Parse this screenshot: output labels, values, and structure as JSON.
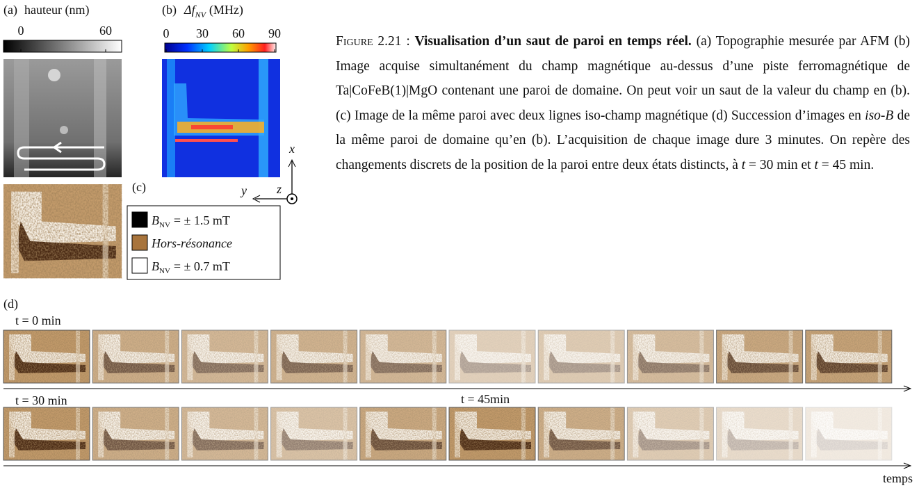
{
  "panel_a": {
    "label": "(a)",
    "title": "hauteur (nm)",
    "colorbar_ticks": [
      0,
      60
    ]
  },
  "panel_b": {
    "label": "(b)",
    "title_symbol": "Δf",
    "title_subscript": "NV",
    "title_unit": "(MHz)",
    "colorbar_ticks": [
      0,
      30,
      60,
      90
    ]
  },
  "axes": {
    "x": "x",
    "y": "y",
    "z": "z"
  },
  "panel_c": {
    "label": "(c)",
    "legend": [
      {
        "symbol": "B",
        "subscript": "NV",
        "text": "= ± 1.5 mT"
      },
      {
        "text": "Hors-résonance"
      },
      {
        "symbol": "B",
        "subscript": "NV",
        "text": "= ± 0.7 mT"
      }
    ]
  },
  "caption": {
    "label": "Figure 2.21 :",
    "title": "Visualisation d’un saut de paroi en temps réel.",
    "segments": [
      "(a) Topographie mesurée par AFM (b) Image acquise simultanément du champ magnétique au-dessus d’une piste ferromagnétique de Ta|CoFeB(1)|MgO contenant une paroi de domaine. On peut voir un saut de la valeur du champ en (b). (c) Image de la même paroi avec deux lignes iso-champ magnétique (d) Succession d’images en ",
      "iso-B",
      " de la même paroi de domaine qu’en (b). L’acquisition de chaque image dure 3 minutes. On repère des changements discrets de la position de la paroi entre deux états distincts, à ",
      "t",
      " = 30 min et ",
      "t",
      " = 45 min."
    ]
  },
  "panel_d": {
    "label": "(d)",
    "row_labels": [
      "t = 0 min",
      "t = 30 min"
    ],
    "marker": "t = 45min",
    "axis_label": "temps"
  }
}
